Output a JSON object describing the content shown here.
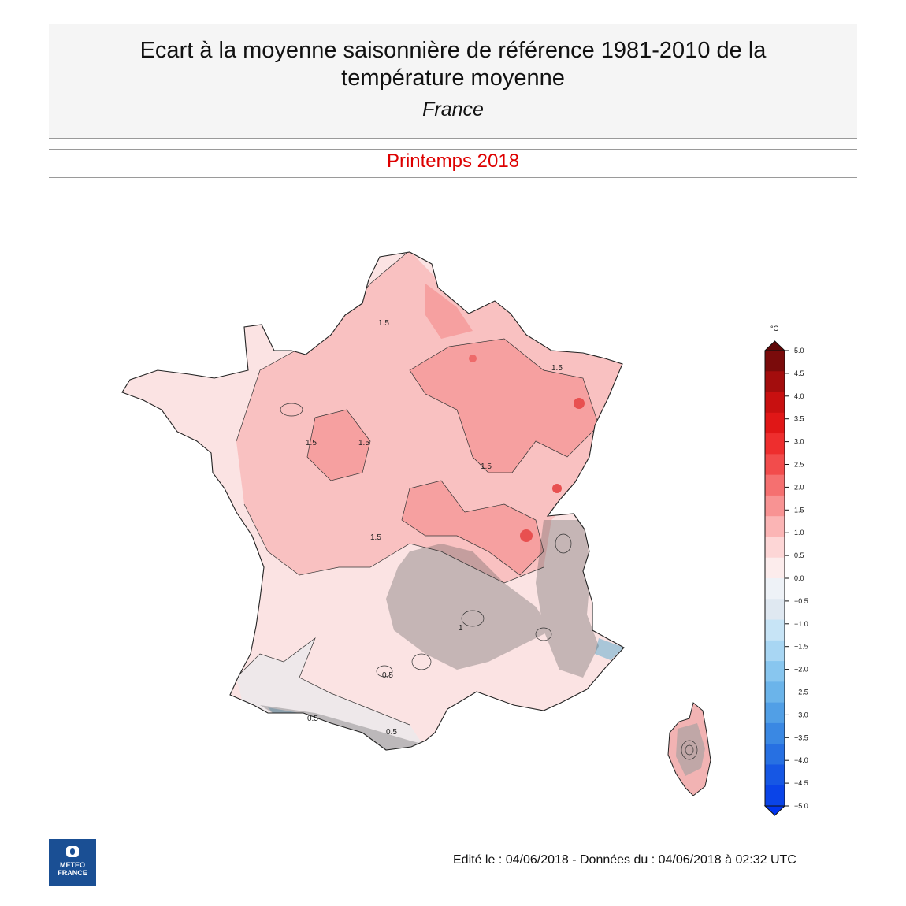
{
  "header": {
    "title_line1": "Ecart à la moyenne saisonnière de référence 1981-2010 de la",
    "title_line2": "température moyenne",
    "region": "France",
    "period": "Printemps 2018"
  },
  "map": {
    "contour_labels": [
      "1.5",
      "1.5",
      "1.5",
      "1.5",
      "1.5",
      "1.5",
      "1",
      "0.5",
      "0.5",
      "0.5"
    ]
  },
  "colorbar": {
    "unit": "°C",
    "ticks": [
      "5.0",
      "4.5",
      "4.0",
      "3.5",
      "3.0",
      "2.5",
      "2.0",
      "1.5",
      "1.0",
      "0.5",
      "0.0",
      "−0.5",
      "−1.0",
      "−1.5",
      "−2.0",
      "−2.5",
      "−3.0",
      "−3.5",
      "−4.0",
      "−4.5",
      "−5.0"
    ],
    "colors": [
      "#7a0b0b",
      "#a30d0d",
      "#c81010",
      "#e01717",
      "#ee2e2e",
      "#f24c4c",
      "#f57070",
      "#f89393",
      "#fbb5b5",
      "#fdd6d6",
      "#fcecec",
      "#eef2f7",
      "#dfe8f1",
      "#c7e4f6",
      "#a8d6f3",
      "#88c6ef",
      "#6bb4ea",
      "#519fe6",
      "#3a88e3",
      "#2770e2",
      "#1657e4",
      "#0a44e8"
    ],
    "arrow_top_color": "#5e0707",
    "arrow_bottom_color": "#0035f0"
  },
  "footer": {
    "edit_text": "Edité le : 04/06/2018 - Données du : 04/06/2018 à 02:32 UTC",
    "logo_line1": "METEO",
    "logo_line2": "FRANCE"
  }
}
